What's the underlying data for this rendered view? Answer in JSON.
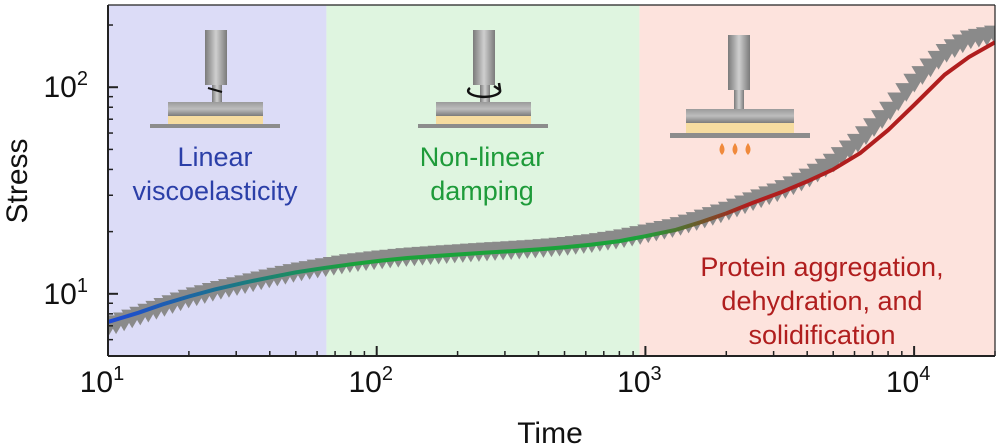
{
  "chart_data": {
    "type": "line",
    "xscale": "log",
    "yscale": "log",
    "xlabel": "Time",
    "ylabel": "Stress",
    "xlim": [
      10,
      20000
    ],
    "ylim": [
      5,
      250
    ],
    "x_ticks": [
      {
        "base": "10",
        "exp": "1",
        "value": 10
      },
      {
        "base": "10",
        "exp": "2",
        "value": 100
      },
      {
        "base": "10",
        "exp": "3",
        "value": 1000
      },
      {
        "base": "10",
        "exp": "4",
        "value": 10000
      }
    ],
    "y_ticks": [
      {
        "base": "10",
        "exp": "1",
        "value": 10
      },
      {
        "base": "10",
        "exp": "2",
        "value": 100
      }
    ],
    "regions": [
      {
        "label_lines": [
          "Linear",
          "viscoelasticity"
        ],
        "x_start": 10,
        "x_end": 65,
        "fill": "#dcdcf7",
        "text_color": "#2b3fa8"
      },
      {
        "label_lines": [
          "Non-linear",
          "damping"
        ],
        "x_start": 65,
        "x_end": 950,
        "fill": "#dff5e0",
        "text_color": "#1e9b3a"
      },
      {
        "label_lines": [
          "Protein aggregation,",
          "dehydration, and",
          "solidification"
        ],
        "x_start": 950,
        "x_end": 20000,
        "fill": "#fde3dd",
        "text_color": "#b01e1e"
      }
    ],
    "series": [
      {
        "kind": "measured-markers",
        "marker": "triangle-down",
        "color": "#8a8a8a",
        "x": [
          10,
          13,
          16,
          20,
          25,
          32,
          40,
          50,
          63,
          80,
          100,
          130,
          160,
          200,
          250,
          320,
          400,
          500,
          630,
          800,
          1000,
          1300,
          1600,
          2000,
          2500,
          3200,
          4000,
          5000,
          6300,
          8000,
          10000,
          13000,
          16000,
          20000
        ],
        "y": [
          6.9,
          7.8,
          8.6,
          9.5,
          10.3,
          11.1,
          11.9,
          12.7,
          13.4,
          14.1,
          14.6,
          15.1,
          15.4,
          15.7,
          16.0,
          16.3,
          16.6,
          17.0,
          17.6,
          18.4,
          19.5,
          21.0,
          22.8,
          25.0,
          28.0,
          31.5,
          36.0,
          43.0,
          55.0,
          75.0,
          105.0,
          145.0,
          170.0,
          180.0
        ]
      },
      {
        "kind": "model-curve",
        "gradient": [
          "#1f49d6",
          "#1aa33a",
          "#b01e1e"
        ],
        "x": [
          10,
          13,
          16,
          20,
          25,
          32,
          40,
          50,
          63,
          80,
          100,
          130,
          160,
          200,
          250,
          320,
          400,
          500,
          630,
          800,
          1000,
          1300,
          1600,
          2000,
          2500,
          3200,
          4000,
          5000,
          6300,
          8000,
          10000,
          13000,
          16000,
          20000
        ],
        "y": [
          7.3,
          8.1,
          8.9,
          9.7,
          10.5,
          11.3,
          12.0,
          12.7,
          13.3,
          13.9,
          14.4,
          14.9,
          15.2,
          15.5,
          15.8,
          16.1,
          16.4,
          16.8,
          17.3,
          18.0,
          19.0,
          20.4,
          22.2,
          24.5,
          27.5,
          31.0,
          35.0,
          40.0,
          48.0,
          62.0,
          82.0,
          115.0,
          140.0,
          165.0
        ]
      }
    ]
  },
  "colors": {
    "axis": "#222222",
    "marker": "#8a8a8a",
    "instrument": "#8c8c8c",
    "sample": "#f6dca0",
    "heat": "#f08a3c"
  },
  "icons": [
    "rheometer-linear-icon",
    "rheometer-rotation-icon",
    "rheometer-heated-icon"
  ]
}
